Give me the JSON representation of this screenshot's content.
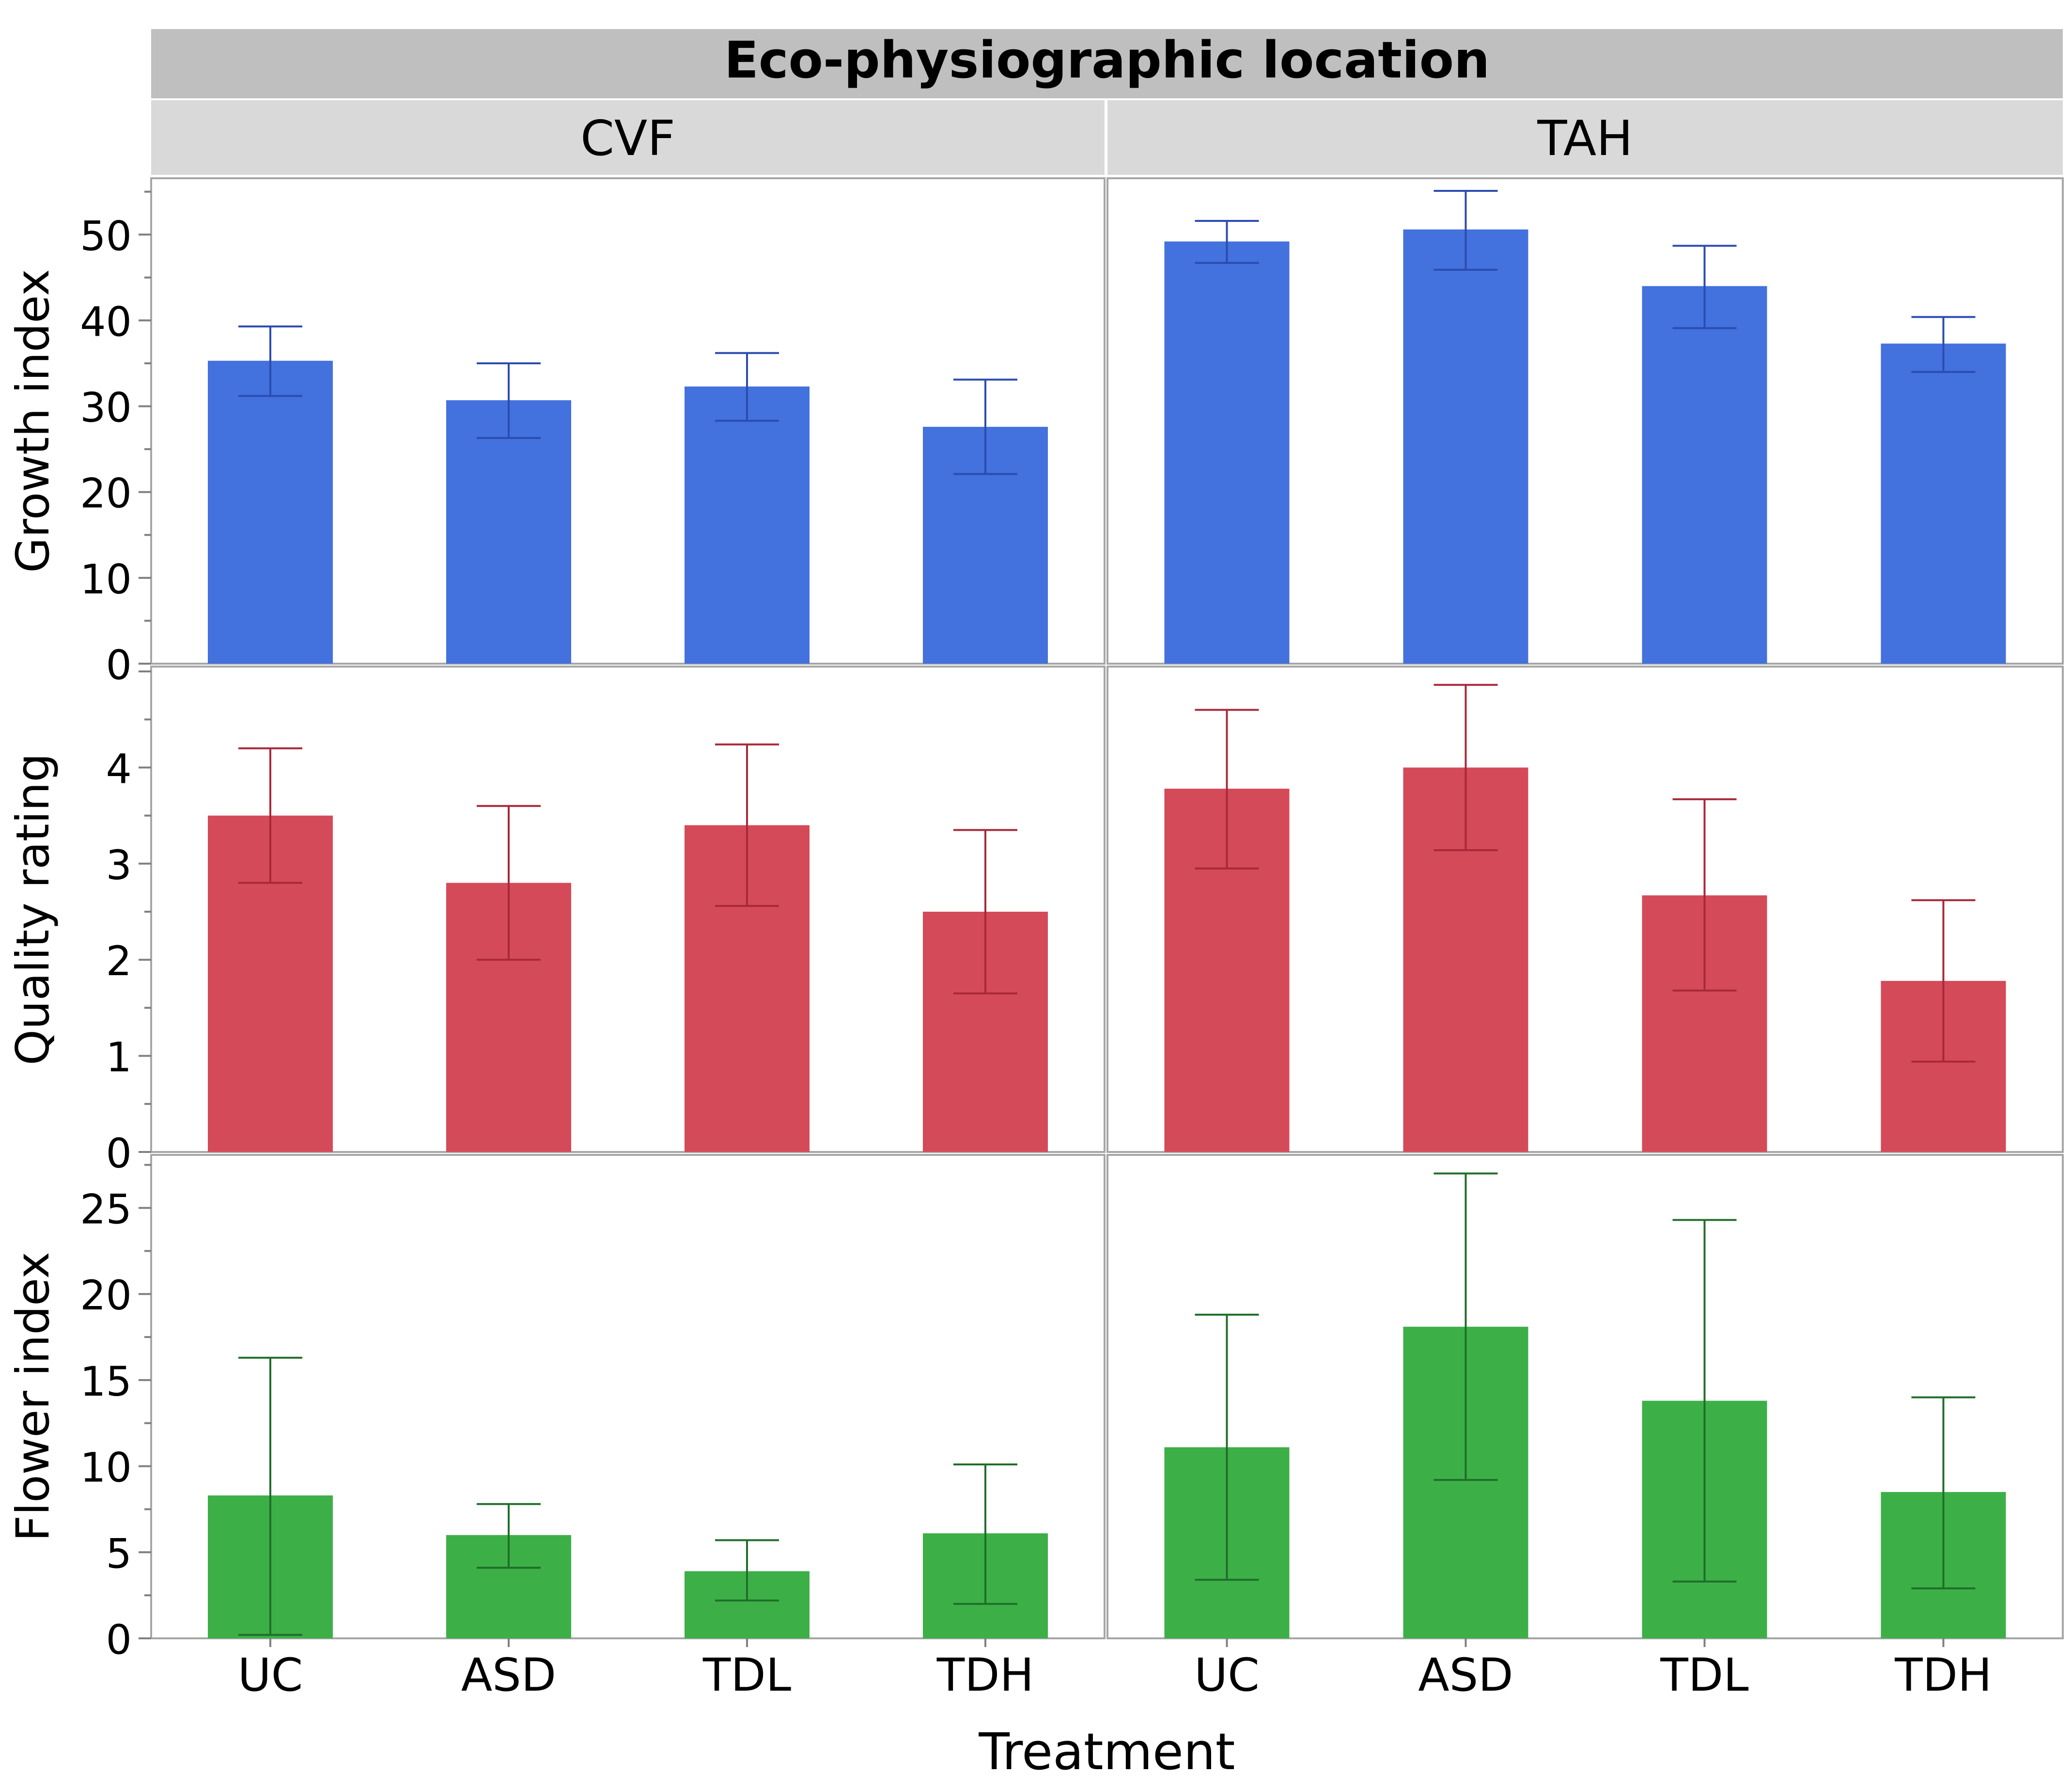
{
  "chart_data": {
    "type": "bar",
    "title": "Eco-physiographic location",
    "xlabel": "Treatment",
    "categories": [
      "UC",
      "ASD",
      "TDL",
      "TDH"
    ],
    "facets": [
      "CVF",
      "TAH"
    ],
    "panels": [
      {
        "ylabel": "Growth index",
        "ylim": [
          0,
          56
        ],
        "yticks": [
          0,
          10,
          20,
          30,
          40,
          50
        ],
        "color": "#4371DD",
        "errorColor": "#2A4CB0",
        "series": [
          {
            "facet": "CVF",
            "values": [
              35.3,
              30.7,
              32.3,
              27.6
            ],
            "lower": [
              31.2,
              26.3,
              28.3,
              22.1
            ],
            "upper": [
              39.3,
              35.0,
              36.2,
              33.1
            ]
          },
          {
            "facet": "TAH",
            "values": [
              49.2,
              50.6,
              44.0,
              37.3
            ],
            "lower": [
              46.7,
              45.9,
              39.1,
              34.0
            ],
            "upper": [
              51.6,
              55.1,
              48.7,
              40.4
            ]
          }
        ]
      },
      {
        "ylabel": "Quality rating",
        "ylim": [
          0,
          5
        ],
        "yticks": [
          0,
          1,
          2,
          3,
          4
        ],
        "color": "#D44A59",
        "errorColor": "#A82838",
        "series": [
          {
            "facet": "CVF",
            "values": [
              3.5,
              2.8,
              3.4,
              2.5
            ],
            "lower": [
              2.8,
              2.0,
              2.56,
              1.65
            ],
            "upper": [
              4.2,
              3.6,
              4.24,
              3.35
            ]
          },
          {
            "facet": "TAH",
            "values": [
              3.78,
              4.0,
              2.67,
              1.78
            ],
            "lower": [
              2.95,
              3.14,
              1.68,
              0.94
            ],
            "upper": [
              4.6,
              4.86,
              3.67,
              2.62
            ]
          }
        ]
      },
      {
        "ylabel": "Flower index",
        "ylim": [
          0,
          27.8
        ],
        "yticks": [
          0,
          5,
          10,
          15,
          20,
          25
        ],
        "color": "#3DAF47",
        "errorColor": "#1F6E2A",
        "series": [
          {
            "facet": "CVF",
            "values": [
              8.3,
              6.0,
              3.9,
              6.1
            ],
            "lower": [
              0.2,
              4.1,
              2.2,
              2.0
            ],
            "upper": [
              16.3,
              7.8,
              5.7,
              10.1
            ]
          },
          {
            "facet": "TAH",
            "values": [
              11.1,
              18.1,
              13.8,
              8.5
            ],
            "lower": [
              3.4,
              9.2,
              3.3,
              2.9
            ],
            "upper": [
              18.8,
              27.0,
              24.3,
              14.0
            ]
          }
        ]
      }
    ]
  }
}
